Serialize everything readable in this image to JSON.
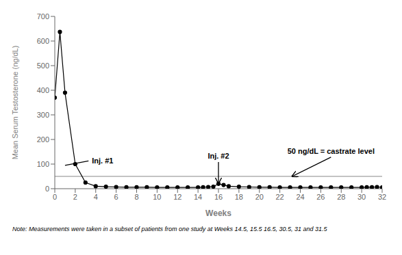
{
  "chart_data": {
    "type": "line",
    "x": [
      0,
      0.5,
      1,
      2,
      3,
      4,
      5,
      6,
      7,
      8,
      9,
      10,
      11,
      12,
      13,
      14,
      14.5,
      15,
      15.5,
      16,
      16.5,
      17,
      18,
      19,
      20,
      21,
      22,
      23,
      24,
      25,
      26,
      27,
      28,
      29,
      30,
      30.5,
      31,
      31.5,
      32
    ],
    "values": [
      370,
      637,
      390,
      100,
      25,
      10,
      8,
      7,
      6,
      6,
      6,
      5,
      5,
      5,
      5,
      5,
      6,
      7,
      8,
      20,
      15,
      10,
      8,
      7,
      6,
      6,
      5,
      5,
      5,
      5,
      5,
      5,
      5,
      5,
      5,
      6,
      6,
      7,
      5
    ],
    "color": "#000000",
    "marker": "circle",
    "xlim": [
      0,
      32
    ],
    "ylim": [
      0,
      700
    ],
    "xticks": [
      0,
      2,
      4,
      6,
      8,
      10,
      12,
      14,
      16,
      18,
      20,
      22,
      24,
      26,
      28,
      30,
      32
    ],
    "yticks": [
      0,
      100,
      200,
      300,
      400,
      500,
      600,
      700
    ],
    "xlabel": "Weeks",
    "ylabel": "Mean Serum Testosterone (ng/dL)",
    "reference_lines": [
      {
        "y": 50,
        "color": "#888888"
      }
    ],
    "annotations": [
      {
        "text": "Inj. #1"
      },
      {
        "text": "Inj. #2"
      },
      {
        "text": "50 ng/dL = castrate level"
      }
    ],
    "note": "Note: Measurements were taken in a subset of patients from one study at Weeks 14.5, 15.5 16.5, 30.5, 31 and 31.5"
  }
}
